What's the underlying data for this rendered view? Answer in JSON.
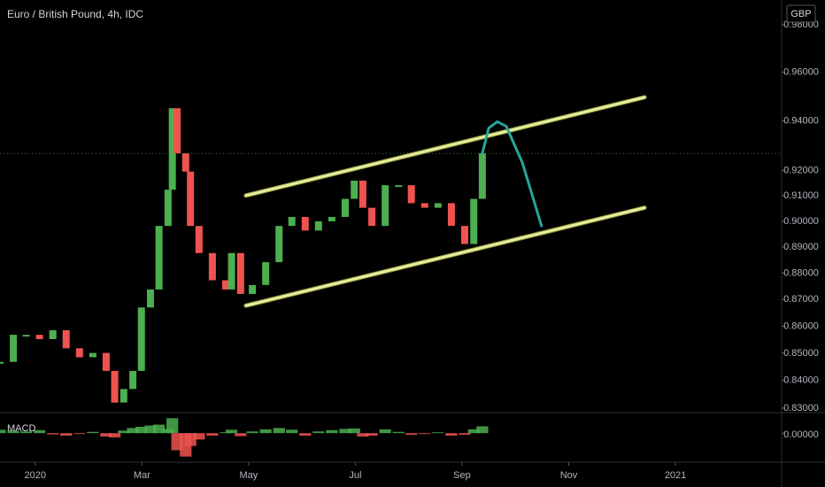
{
  "chart_data": [
    {
      "type": "candlestick",
      "title": "Euro / British Pound, 4h, IDC",
      "currency": "GBP",
      "log_scale": true,
      "grid": false,
      "last_price_line": true,
      "up_color": "#4caf50",
      "down_color": "#ef5350",
      "x": [
        -0.66,
        -0.41,
        -0.17,
        0.08,
        0.33,
        0.58,
        0.83,
        1.08,
        1.33,
        1.49,
        1.66,
        1.83,
        1.99,
        2.16,
        2.32,
        2.49,
        2.57,
        2.66,
        2.82,
        2.91,
        3.07,
        3.32,
        3.57,
        3.68,
        3.85,
        4.07,
        4.32,
        4.57,
        4.81,
        5.06,
        5.31,
        5.56,
        5.81,
        5.98,
        6.14,
        6.31,
        6.56,
        6.81,
        7.05,
        7.3,
        7.55,
        7.8,
        8.05,
        8.22,
        8.38
      ],
      "values": [
        0.8468,
        0.8568,
        0.8568,
        0.8552,
        0.8585,
        0.8518,
        0.8485,
        0.8501,
        0.8435,
        0.832,
        0.8369,
        0.8435,
        0.867,
        0.8738,
        0.8982,
        0.9124,
        0.9452,
        0.9269,
        0.9196,
        0.8982,
        0.8877,
        0.8773,
        0.8738,
        0.8877,
        0.8721,
        0.8755,
        0.8842,
        0.8982,
        0.9017,
        0.8964,
        0.9,
        0.9017,
        0.9088,
        0.916,
        0.9053,
        0.8982,
        0.9142,
        0.9142,
        0.9071,
        0.9053,
        0.9071,
        0.8982,
        0.8912,
        0.9088,
        0.9269
      ],
      "xlim": [
        -0.66,
        13.94
      ],
      "xticks": [
        {
          "value": 0,
          "label": "2020"
        },
        {
          "value": 2,
          "label": "Mar"
        },
        {
          "value": 4,
          "label": "May"
        },
        {
          "value": 6,
          "label": "Jul"
        },
        {
          "value": 8,
          "label": "Sep"
        },
        {
          "value": 10,
          "label": "Nov"
        },
        {
          "value": 12,
          "label": "2021"
        }
      ],
      "ylim": [
        0.8287,
        0.9906
      ],
      "yticks": [
        {
          "value": 0.83,
          "label": "0.83000"
        },
        {
          "value": 0.84,
          "label": "0.84000"
        },
        {
          "value": 0.85,
          "label": "0.85000"
        },
        {
          "value": 0.86,
          "label": "0.86000"
        },
        {
          "value": 0.87,
          "label": "0.87000"
        },
        {
          "value": 0.88,
          "label": "0.88000"
        },
        {
          "value": 0.89,
          "label": "0.89000"
        },
        {
          "value": 0.9,
          "label": "0.90000"
        },
        {
          "value": 0.91,
          "label": "0.91000"
        },
        {
          "value": 0.92,
          "label": "0.92000"
        },
        {
          "value": 0.94,
          "label": "0.94000"
        },
        {
          "value": 0.96,
          "label": "0.96000"
        },
        {
          "value": 0.98,
          "label": "0.98000"
        }
      ],
      "drawings": [
        {
          "color": "#e6ee9c",
          "points": [
            [
              3.95,
              0.9101
            ],
            [
              11.42,
              0.9497
            ]
          ]
        },
        {
          "color": "#e6ee9c",
          "points": [
            [
              3.95,
              0.8677
            ],
            [
              11.42,
              0.9053
            ]
          ]
        },
        {
          "color": "#26a69a",
          "points": [
            [
              8.38,
              0.9269
            ],
            [
              8.5,
              0.9371
            ],
            [
              8.66,
              0.9397
            ],
            [
              8.83,
              0.9378
            ],
            [
              9.13,
              0.9232
            ],
            [
              9.49,
              0.8982
            ]
          ]
        }
      ]
    },
    {
      "type": "histogram",
      "title": "MACD",
      "up_color": "#4caf50",
      "down_color": "#ef5350",
      "values": [
        0.0008,
        0.0006,
        0.0004,
        0.0007,
        -0.0003,
        -0.0006,
        -0.0002,
        0.0003,
        -0.0008,
        -0.001,
        0.0006,
        0.0012,
        0.0015,
        0.0018,
        0.002,
        0.001,
        0.0035,
        -0.004,
        -0.0055,
        -0.003,
        -0.0015,
        -0.0006,
        0.0002,
        0.0008,
        -0.0007,
        0.0004,
        0.0009,
        0.0012,
        0.0008,
        -0.0006,
        0.0004,
        0.0007,
        0.001,
        0.0011,
        -0.0008,
        -0.0006,
        0.0009,
        0.0003,
        -0.0004,
        -0.0002,
        0.0002,
        -0.0006,
        -0.0004,
        0.0009,
        0.0016
      ],
      "ylim": [
        -0.0064,
        0.0044
      ],
      "yticks": [
        {
          "value": 0,
          "label": "0.00000"
        }
      ]
    }
  ]
}
